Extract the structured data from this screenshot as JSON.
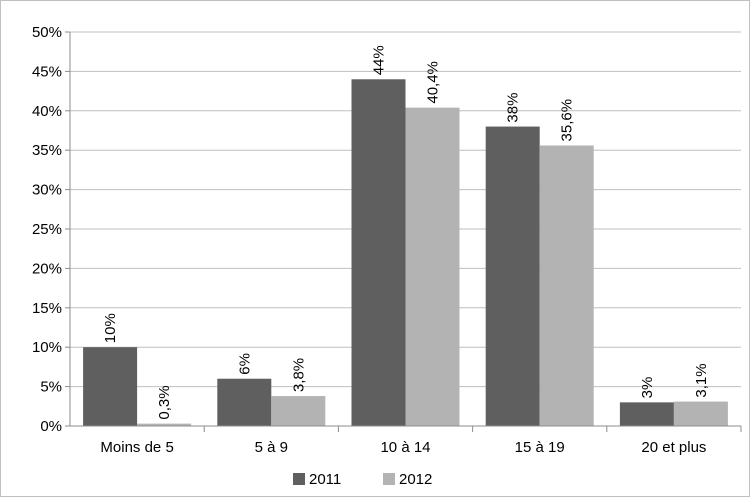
{
  "chart_data": {
    "type": "bar",
    "categories": [
      "Moins de 5",
      "5 à 9",
      "10 à 14",
      "15 à 19",
      "20 et plus"
    ],
    "series": [
      {
        "name": "2011",
        "color": "#5f5f5f",
        "values": [
          10,
          6,
          44,
          38,
          3
        ],
        "labels": [
          "10%",
          "6%",
          "44%",
          "38%",
          "3%"
        ]
      },
      {
        "name": "2012",
        "color": "#b3b3b3",
        "values": [
          0.3,
          3.8,
          40.4,
          35.6,
          3.1
        ],
        "labels": [
          "0,3%",
          "3,8%",
          "40,4%",
          "35,6%",
          "3,1%"
        ]
      }
    ],
    "y_ticks": [
      "0%",
      "5%",
      "10%",
      "15%",
      "20%",
      "25%",
      "30%",
      "35%",
      "40%",
      "45%",
      "50%"
    ],
    "ylim": [
      0,
      50
    ],
    "y_step": 5,
    "grid": true,
    "data_labels": "rotated-vertical",
    "legend_position": "bottom",
    "title": "",
    "xlabel": "",
    "ylabel": ""
  }
}
